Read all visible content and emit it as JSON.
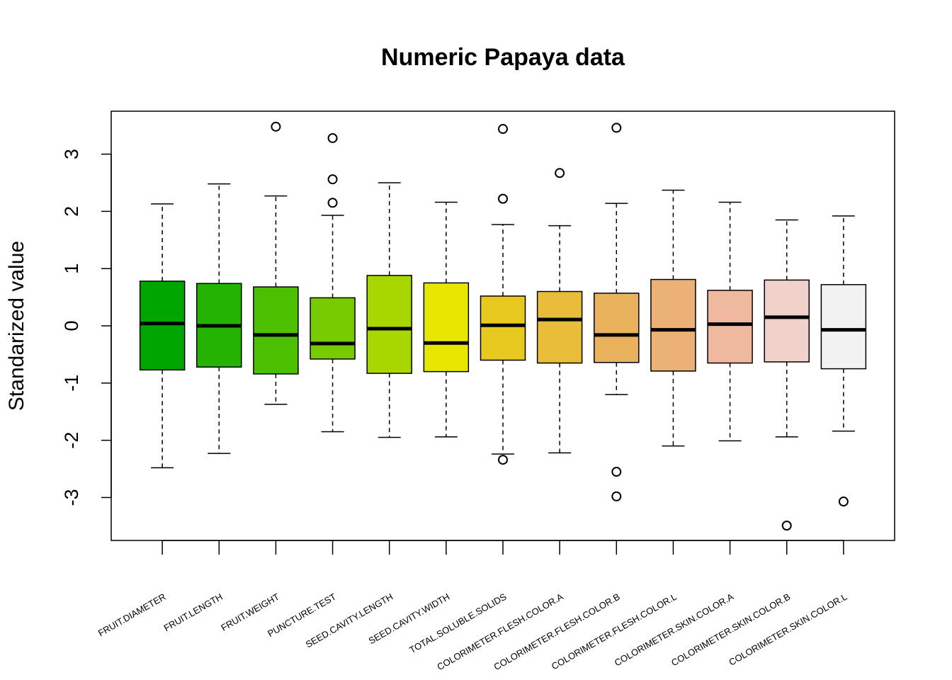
{
  "chart_data": {
    "type": "box",
    "title": "Numeric Papaya data",
    "xlabel": "",
    "ylabel": "Standarized value",
    "ylim": [
      -3.75,
      3.75
    ],
    "yticks": [
      -3,
      -2,
      -1,
      0,
      1,
      2,
      3
    ],
    "ytick_labels": [
      "-3",
      "-2",
      "-1",
      "0",
      "1",
      "2",
      "3"
    ],
    "grid": false,
    "legend": "none",
    "series": [
      {
        "category": "FRUIT.DIAMETER",
        "color": "#00A600",
        "whisker_low": -2.48,
        "q1": -0.77,
        "median": 0.04,
        "q3": 0.78,
        "whisker_high": 2.13,
        "outliers": []
      },
      {
        "category": "FRUIT.LENGTH",
        "color": "#24B300",
        "whisker_low": -2.23,
        "q1": -0.72,
        "median": 0.0,
        "q3": 0.74,
        "whisker_high": 2.48,
        "outliers": []
      },
      {
        "category": "FRUIT.WEIGHT",
        "color": "#4BBF00",
        "whisker_low": -1.37,
        "q1": -0.84,
        "median": -0.16,
        "q3": 0.68,
        "whisker_high": 2.27,
        "outliers": [
          3.48
        ]
      },
      {
        "category": "PUNCTURE.TEST",
        "color": "#77CB00",
        "whisker_low": -1.85,
        "q1": -0.58,
        "median": -0.31,
        "q3": 0.49,
        "whisker_high": 1.93,
        "outliers": [
          3.28,
          2.56,
          2.15
        ]
      },
      {
        "category": "SEED.CAVITY.LENGTH",
        "color": "#A8D700",
        "whisker_low": -1.95,
        "q1": -0.83,
        "median": -0.05,
        "q3": 0.88,
        "whisker_high": 2.5,
        "outliers": []
      },
      {
        "category": "SEED.CAVITY.WIDTH",
        "color": "#E6E600",
        "whisker_low": -1.94,
        "q1": -0.8,
        "median": -0.3,
        "q3": 0.75,
        "whisker_high": 2.16,
        "outliers": []
      },
      {
        "category": "TOTAL.SOLUBLE.SOLIDS",
        "color": "#E8C91F",
        "whisker_low": -2.24,
        "q1": -0.6,
        "median": 0.01,
        "q3": 0.52,
        "whisker_high": 1.77,
        "outliers": [
          3.44,
          2.22,
          -2.34
        ]
      },
      {
        "category": "COLORIMETER.FLESH.COLOR.A",
        "color": "#E9BD3A",
        "whisker_low": -2.22,
        "q1": -0.65,
        "median": 0.11,
        "q3": 0.6,
        "whisker_high": 1.75,
        "outliers": [
          2.67
        ]
      },
      {
        "category": "COLORIMETER.FLESH.COLOR.B",
        "color": "#EBB25E",
        "whisker_low": -1.2,
        "q1": -0.64,
        "median": -0.16,
        "q3": 0.57,
        "whisker_high": 2.14,
        "outliers": [
          3.46,
          -2.55,
          -2.98
        ]
      },
      {
        "category": "COLORIMETER.FLESH.COLOR.L",
        "color": "#ECB176",
        "whisker_low": -2.1,
        "q1": -0.79,
        "median": -0.07,
        "q3": 0.81,
        "whisker_high": 2.37,
        "outliers": []
      },
      {
        "category": "COLORIMETER.SKIN.COLOR.A",
        "color": "#EEB99F",
        "whisker_low": -2.01,
        "q1": -0.65,
        "median": 0.03,
        "q3": 0.62,
        "whisker_high": 2.16,
        "outliers": []
      },
      {
        "category": "COLORIMETER.SKIN.COLOR.B",
        "color": "#F0D2CB",
        "whisker_low": -1.94,
        "q1": -0.63,
        "median": 0.15,
        "q3": 0.8,
        "whisker_high": 1.85,
        "outliers": [
          -3.49
        ]
      },
      {
        "category": "COLORIMETER.SKIN.COLOR.L",
        "color": "#F2F2F2",
        "whisker_low": -1.84,
        "q1": -0.75,
        "median": -0.07,
        "q3": 0.72,
        "whisker_high": 1.92,
        "outliers": [
          -3.07
        ]
      }
    ]
  }
}
